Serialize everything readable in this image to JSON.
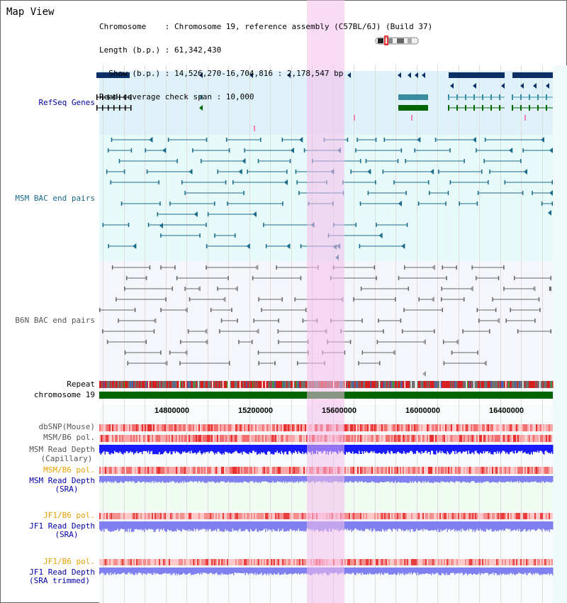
{
  "view_title": "Map View",
  "info": {
    "line1": "Chromosome    : Chromosome 19, reference assembly (C57BL/6J) (Build 37)",
    "line2": "Length (b.p.) : 61,342,430",
    "line3": "  Show (b.p.) : 14,526,270-16,704,816 : 2,178,547 bp",
    "line4": "Read coverage check span : 10,000"
  },
  "tracks": {
    "refseq": "RefSeq Genes",
    "msm_bac": "MSM BAC end pairs",
    "b6n_bac": "B6N BAC end pairs",
    "repeat": "Repeat",
    "chromosome": "chromosome 19",
    "dbsnp": "dbSNP(Mouse)",
    "msm_b6_pol": "MSM/B6 pol.",
    "msm_read_depth_cap": "MSM Read Depth",
    "msm_read_depth_cap_sub": "(Capillary)",
    "msm_b6_pol2": "MSM/B6 pol.",
    "msm_read_depth_sra": "MSM Read Depth",
    "msm_read_depth_sra_sub": "(SRA)",
    "jf1_b6_pol": "JF1/B6 pol.",
    "jf1_read_depth": "JF1 Read Depth",
    "jf1_read_depth_sub": "(SRA)",
    "jf1_b6_pol2": "JF1/B6 pol.",
    "jf1_read_depth_trim": "JF1 Read Depth",
    "jf1_read_depth_trim_sub": "(SRA trimmed)"
  },
  "axis": {
    "ticks": [
      "14800000",
      "15200000",
      "15600000",
      "16000000",
      "16400000"
    ]
  },
  "colors": {
    "refseq_bg": "#dff2fa",
    "msm_bg": "#e6fafa",
    "b6n_bg": "#f4f6fc",
    "sra_bg": "#effaf0",
    "highlight": "#f5bdeb",
    "gene_dark": "#0b2f66",
    "gene_teal": "#3c8ca0",
    "gene_green": "#006400",
    "bac_msm": "#1a6a8a",
    "bac_b6n": "#666666",
    "chromosome_bar": "#006400",
    "read_depth_cap": "#1a1aff",
    "read_depth_sra": "#8080f0",
    "label_blue": "#0000aa",
    "label_teal": "#1a6a8a",
    "label_gray": "#555555",
    "label_orange": "#e8a000"
  }
}
